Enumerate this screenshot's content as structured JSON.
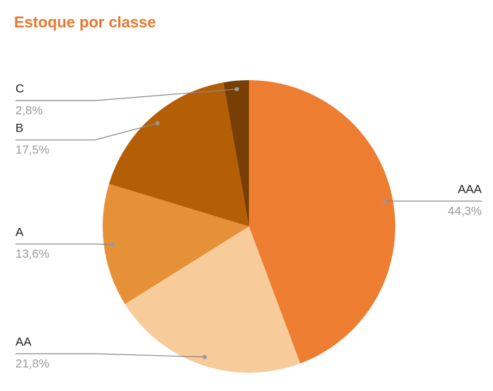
{
  "chart_data": {
    "type": "pie",
    "title": "Estoque por classe",
    "categories": [
      "AAA",
      "AA",
      "A",
      "B",
      "C"
    ],
    "values": [
      44.3,
      21.8,
      13.6,
      17.5,
      2.8
    ],
    "value_labels": [
      "44,3%",
      "21,8%",
      "13,6%",
      "17,5%",
      "2,8%"
    ],
    "colors": [
      "#ed7d31",
      "#f8cb9b",
      "#e69138",
      "#b45f06",
      "#783f04"
    ]
  }
}
